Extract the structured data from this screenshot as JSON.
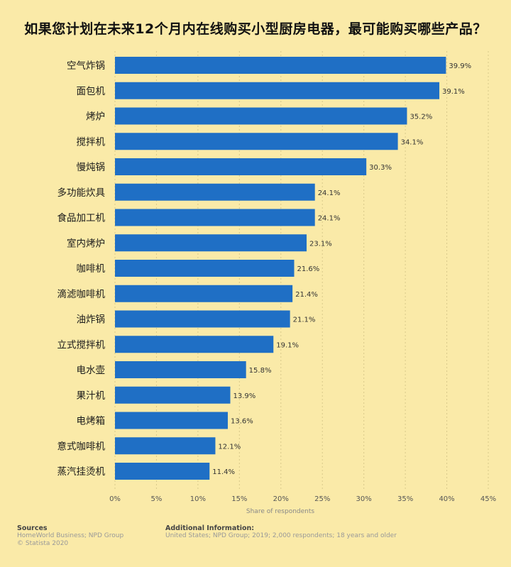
{
  "title": "如果您计划在未来12个月内在线购买小型厨房电器，最可能购买哪些产品？",
  "chart_data": {
    "type": "bar",
    "orientation": "horizontal",
    "categories": [
      "空气炸锅",
      "面包机",
      "烤炉",
      "搅拌机",
      "慢炖锅",
      "多功能炊具",
      "食品加工机",
      "室内烤炉",
      "咖啡机",
      "滴滤咖啡机",
      "油炸锅",
      "立式搅拌机",
      "电水壶",
      "果汁机",
      "电烤箱",
      "意式咖啡机",
      "蒸汽挂烫机"
    ],
    "values": [
      39.9,
      39.1,
      35.2,
      34.1,
      30.3,
      24.1,
      24.1,
      23.1,
      21.6,
      21.4,
      21.1,
      19.1,
      15.8,
      13.9,
      13.6,
      12.1,
      11.4
    ],
    "value_labels": [
      "39.9%",
      "39.1%",
      "35.2%",
      "34.1%",
      "30.3%",
      "24.1%",
      "24.1%",
      "23.1%",
      "21.6%",
      "21.4%",
      "21.1%",
      "19.1%",
      "15.8%",
      "13.9%",
      "13.6%",
      "12.1%",
      "11.4%"
    ],
    "xlim": [
      0,
      45
    ],
    "xticks": [
      0,
      5,
      10,
      15,
      20,
      25,
      30,
      35,
      40,
      45
    ],
    "xtick_labels": [
      "0%",
      "5%",
      "10%",
      "15%",
      "20%",
      "25%",
      "30%",
      "35%",
      "40%",
      "45%"
    ],
    "xlabel": "Share of respondents",
    "bar_color": "#1f6fc5",
    "grid": true
  },
  "footer": {
    "sources_title": "Sources",
    "sources_line1": "HomeWorld Business; NPD Group",
    "sources_line2": "© Statista 2020",
    "additional_title": "Additional Information:",
    "additional_line1": "United States; NPD Group; 2019; 2,000 respondents; 18 years and older"
  }
}
